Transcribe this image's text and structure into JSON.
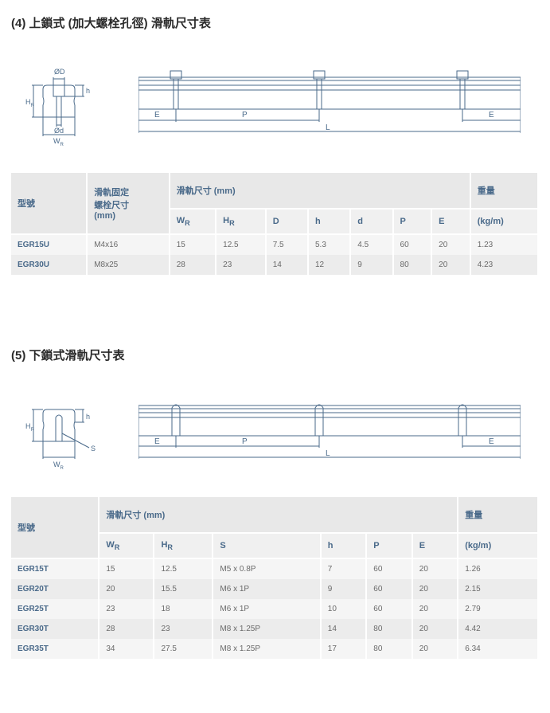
{
  "section4": {
    "title": "(4) 上鎖式 (加大螺栓孔徑) 滑軌尺寸表",
    "diagram": {
      "labels": {
        "phiD": "ØD",
        "phid": "Ød",
        "HR": "H",
        "HRsub": "R",
        "h": "h",
        "WR": "W",
        "WRsub": "R",
        "E": "E",
        "P": "P",
        "L": "L"
      },
      "stroke": "#4a6a8a"
    },
    "table": {
      "header_group": {
        "model": "型號",
        "bolt": "滑軌固定\n螺栓尺寸\n(mm)",
        "rail": "滑軌尺寸 (mm)",
        "weight": "重量"
      },
      "cols": [
        "W",
        "H",
        "D",
        "h",
        "d",
        "P",
        "E",
        "(kg/m)"
      ],
      "col_subs": [
        "R",
        "R",
        "",
        "",
        "",
        "",
        "",
        ""
      ],
      "rows": [
        [
          "EGR15U",
          "M4x16",
          "15",
          "12.5",
          "7.5",
          "5.3",
          "4.5",
          "60",
          "20",
          "1.23"
        ],
        [
          "EGR30U",
          "M8x25",
          "28",
          "23",
          "14",
          "12",
          "9",
          "80",
          "20",
          "4.23"
        ]
      ]
    }
  },
  "section5": {
    "title": "(5) 下鎖式滑軌尺寸表",
    "diagram": {
      "labels": {
        "HR": "H",
        "HRsub": "R",
        "h": "h",
        "WR": "W",
        "WRsub": "R",
        "S": "S",
        "E": "E",
        "P": "P",
        "L": "L"
      },
      "stroke": "#4a6a8a"
    },
    "table": {
      "header_group": {
        "model": "型號",
        "rail": "滑軌尺寸 (mm)",
        "weight": "重量"
      },
      "cols": [
        "W",
        "H",
        "S",
        "h",
        "P",
        "E",
        "(kg/m)"
      ],
      "col_subs": [
        "R",
        "R",
        "",
        "",
        "",
        "",
        ""
      ],
      "rows": [
        [
          "EGR15T",
          "15",
          "12.5",
          "M5 x 0.8P",
          "7",
          "60",
          "20",
          "1.26"
        ],
        [
          "EGR20T",
          "20",
          "15.5",
          "M6 x 1P",
          "9",
          "60",
          "20",
          "2.15"
        ],
        [
          "EGR25T",
          "23",
          "18",
          "M6 x 1P",
          "10",
          "60",
          "20",
          "2.79"
        ],
        [
          "EGR30T",
          "28",
          "23",
          "M8 x 1.25P",
          "14",
          "80",
          "20",
          "4.42"
        ],
        [
          "EGR35T",
          "34",
          "27.5",
          "M8 x 1.25P",
          "17",
          "80",
          "20",
          "6.34"
        ]
      ]
    }
  }
}
